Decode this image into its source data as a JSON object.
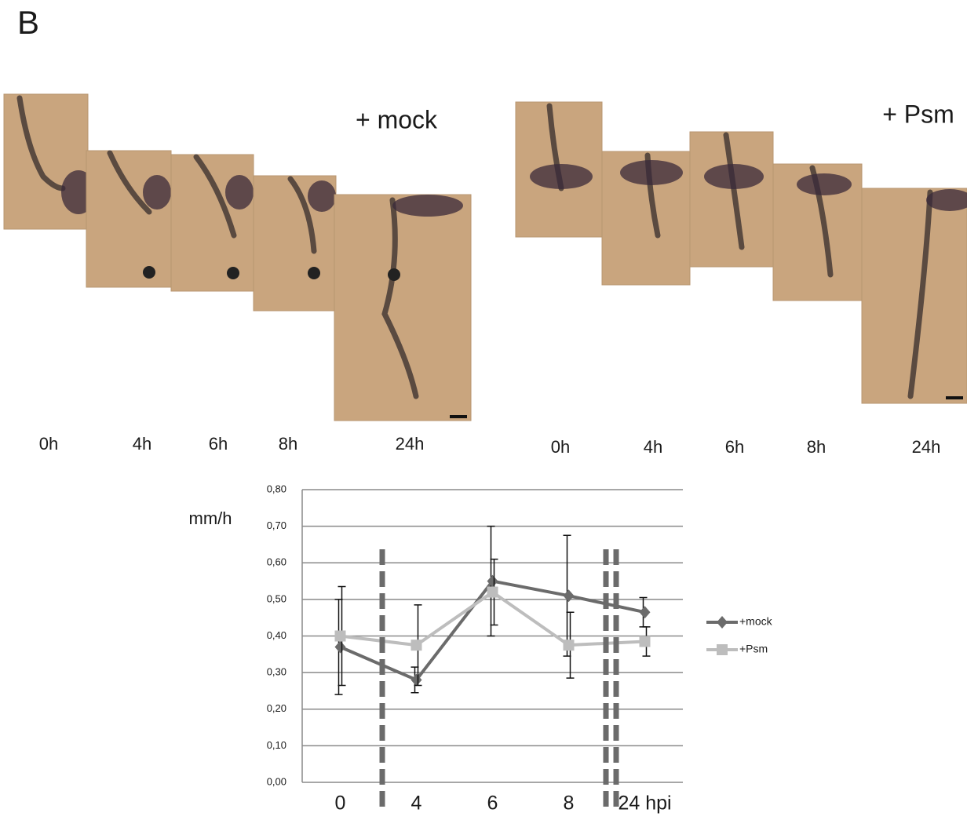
{
  "figure": {
    "label": "B",
    "panels": [
      {
        "title": "+ mock",
        "time_labels": [
          "0h",
          "4h",
          "6h",
          "8h",
          "24h"
        ]
      },
      {
        "title": "+ Psm",
        "time_labels": [
          "0h",
          "4h",
          "6h",
          "8h",
          "24h"
        ]
      }
    ]
  },
  "chart_data": {
    "type": "line",
    "y_label": "mm/h",
    "categories": [
      "0",
      "4",
      "6",
      "8",
      "24 hpi"
    ],
    "series": [
      {
        "name": "+mock",
        "color": "#6b6b6b",
        "marker": "diamond",
        "values": [
          0.37,
          0.28,
          0.55,
          0.51,
          0.465
        ],
        "errors": [
          0.13,
          0.035,
          0.15,
          0.165,
          0.04
        ]
      },
      {
        "name": "+Psm",
        "color": "#bdbdbd",
        "marker": "square",
        "values": [
          0.4,
          0.375,
          0.52,
          0.375,
          0.385
        ],
        "errors": [
          0.135,
          0.11,
          0.09,
          0.09,
          0.04
        ]
      }
    ],
    "ylim": [
      0,
      0.8
    ],
    "yticks": [
      {
        "value": 0,
        "label": "0,00"
      },
      {
        "value": 0.1,
        "label": "0,10"
      },
      {
        "value": 0.2,
        "label": "0,20"
      },
      {
        "value": 0.3,
        "label": "0,30"
      },
      {
        "value": 0.4,
        "label": "0,40"
      },
      {
        "value": 0.5,
        "label": "0,50"
      },
      {
        "value": 0.6,
        "label": "0,60"
      },
      {
        "value": 0.7,
        "label": "0,70"
      },
      {
        "value": 0.8,
        "label": "0,80"
      }
    ],
    "grid": true
  }
}
